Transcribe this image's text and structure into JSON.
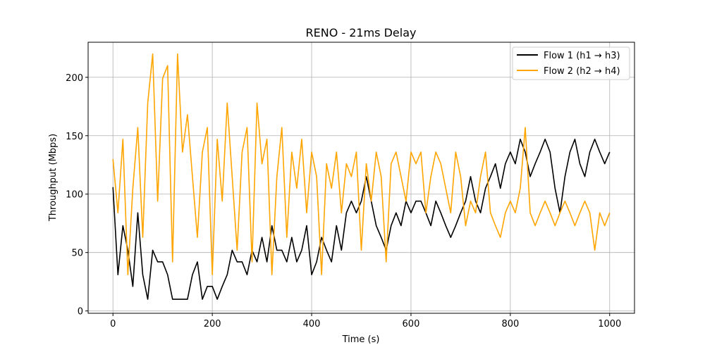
{
  "chart_data": {
    "type": "line",
    "title": "RENO - 21ms Delay",
    "xlabel": "Time (s)",
    "ylabel": "Throughput (Mbps)",
    "xlim": [
      -50,
      1050
    ],
    "ylim": [
      -2,
      230
    ],
    "x_ticks": [
      0,
      200,
      400,
      600,
      800,
      1000
    ],
    "x_tick_labels": [
      "0",
      "200",
      "400",
      "600",
      "800",
      "1000"
    ],
    "y_ticks": [
      0,
      50,
      100,
      150,
      200
    ],
    "y_tick_labels": [
      "0",
      "50",
      "100",
      "150",
      "200"
    ],
    "grid": true,
    "legend_position": "top-right",
    "series": [
      {
        "name": "Flow 1 (h1 → h3)",
        "color": "#000000",
        "x_start": 0,
        "x_step": 10,
        "values": [
          106,
          31,
          73,
          52,
          21,
          84,
          31,
          10,
          52,
          42,
          42,
          31,
          10,
          10,
          10,
          10,
          31,
          42,
          10,
          21,
          21,
          10,
          21,
          31,
          52,
          42,
          42,
          31,
          52,
          42,
          63,
          42,
          73,
          52,
          52,
          42,
          63,
          42,
          52,
          73,
          31,
          42,
          63,
          52,
          42,
          73,
          52,
          84,
          94,
          84,
          94,
          115,
          94,
          73,
          63,
          52,
          73,
          84,
          73,
          94,
          84,
          94,
          94,
          84,
          73,
          94,
          84,
          73,
          63,
          73,
          84,
          94,
          115,
          94,
          84,
          105,
          115,
          126,
          105,
          126,
          136,
          126,
          147,
          136,
          115,
          126,
          136,
          147,
          136,
          105,
          84,
          115,
          136,
          147,
          126,
          115,
          136,
          147,
          136,
          126,
          136
        ]
      },
      {
        "name": "Flow 2 (h2 → h4)",
        "color": "#ffa500",
        "x_start": 0,
        "x_step": 10,
        "values": [
          130,
          84,
          147,
          31,
          105,
          157,
          63,
          178,
          220,
          94,
          199,
          210,
          42,
          220,
          136,
          168,
          115,
          63,
          136,
          157,
          31,
          147,
          94,
          178,
          115,
          52,
          136,
          157,
          42,
          178,
          126,
          147,
          31,
          115,
          157,
          63,
          136,
          105,
          147,
          84,
          136,
          115,
          31,
          126,
          105,
          136,
          84,
          126,
          115,
          136,
          52,
          126,
          94,
          136,
          115,
          42,
          126,
          136,
          115,
          94,
          136,
          126,
          136,
          84,
          115,
          136,
          126,
          105,
          84,
          136,
          115,
          73,
          94,
          84,
          115,
          136,
          84,
          73,
          63,
          84,
          94,
          84,
          105,
          157,
          84,
          73,
          84,
          94,
          84,
          73,
          84,
          94,
          84,
          73,
          84,
          94,
          84,
          52,
          84,
          73,
          84
        ]
      }
    ]
  }
}
